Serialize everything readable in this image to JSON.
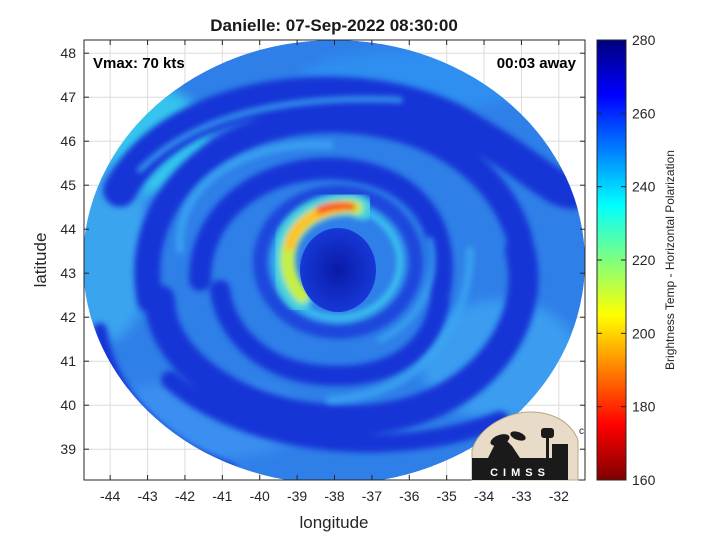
{
  "chart_data": {
    "type": "heatmap",
    "title": "Danielle: 07-Sep-2022 08:30:00",
    "xlabel": "longitude",
    "ylabel": "latitude",
    "xlim": [
      -44.7,
      -31.3
    ],
    "ylim": [
      38.3,
      48.3
    ],
    "xticks": [
      -44,
      -43,
      -42,
      -41,
      -40,
      -39,
      -38,
      -37,
      -36,
      -35,
      -34,
      -33,
      -32
    ],
    "yticks": [
      39,
      40,
      41,
      42,
      43,
      44,
      45,
      46,
      47,
      48
    ],
    "grid": true,
    "storm_center": {
      "lon": -38.0,
      "lat": 43.3
    },
    "annotations": {
      "left": "Vmax: 70 kts",
      "right": "00:03 away"
    },
    "colorbar": {
      "label": "Brightness Temp - Horizontal Polarization",
      "ticks": [
        160,
        180,
        200,
        220,
        240,
        260,
        280
      ],
      "range": [
        160,
        280
      ],
      "colormap": "jet",
      "colors": [
        "#7f0000",
        "#ff0000",
        "#ff7f00",
        "#ffff00",
        "#7fff7f",
        "#00ffff",
        "#007fff",
        "#0000ff",
        "#00007f"
      ]
    },
    "logo_text": "CIMSS"
  }
}
